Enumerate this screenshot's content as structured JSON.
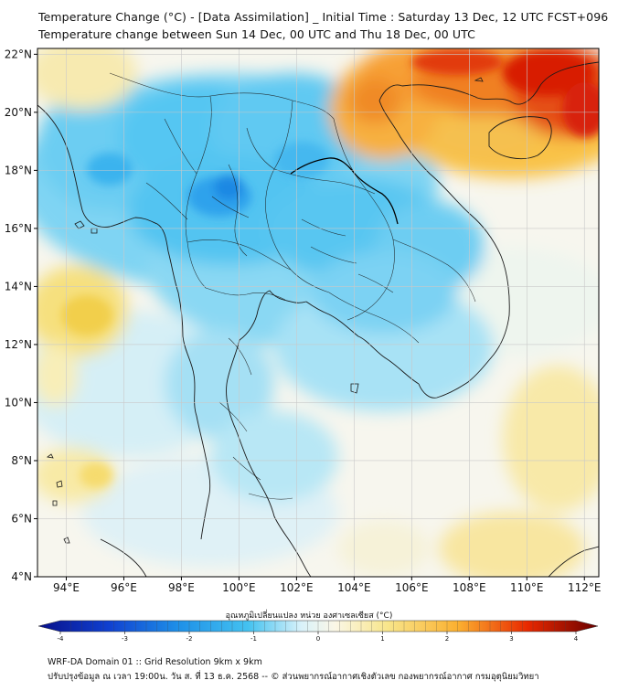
{
  "title_line1": "Temperature Change (°C) - [Data Assimilation] _ Initial Time : Saturday 13 Dec, 12 UTC FCST+096",
  "title_line2": "Temperature change between Sun 14 Dec, 00 UTC and Thu 18 Dec, 00 UTC",
  "map": {
    "lon_range": [
      93,
      112.5
    ],
    "lat_range": [
      4,
      22.2
    ],
    "lat_ticks": [
      "22°N",
      "20°N",
      "18°N",
      "16°N",
      "14°N",
      "12°N",
      "10°N",
      "8°N",
      "6°N",
      "4°N"
    ],
    "lat_values": [
      22,
      20,
      18,
      16,
      14,
      12,
      10,
      8,
      6,
      4
    ],
    "lon_ticks": [
      "94°E",
      "96°E",
      "98°E",
      "100°E",
      "102°E",
      "104°E",
      "106°E",
      "108°E",
      "110°E",
      "112°E"
    ],
    "lon_values": [
      94,
      96,
      98,
      100,
      102,
      104,
      106,
      108,
      110,
      112
    ],
    "colors": {
      "warm_max": "#d40000",
      "warm": "#f06010",
      "warm_light": "#fbd060",
      "neutral": "#f7f7f2",
      "cool_light": "#bfe8f6",
      "cool": "#44c2f0",
      "cool_deep": "#1e90e8"
    }
  },
  "colorbar": {
    "title": "อุณหภูมิเปลี่ยนแปลง หน่วย องศาเซลเซียส (°C)",
    "ticks": [
      "-4",
      "-3",
      "-2",
      "-1",
      "0",
      "1",
      "2",
      "3",
      "4"
    ],
    "tick_values": [
      -4,
      -3,
      -2,
      -1,
      0,
      1,
      2,
      3,
      4
    ]
  },
  "footer_line1": "WRF-DA Domain 01 :: Grid Resolution 9km x 9km",
  "footer_line2": "ปรับปรุงข้อมูล ณ เวลา 19:00น. วัน ส. ที่ 13 ธ.ค. 2568 -- © ส่วนพยากรณ์อากาศเชิงตัวเลข กองพยากรณ์อากาศ กรมอุตุนิยมวิทยา"
}
